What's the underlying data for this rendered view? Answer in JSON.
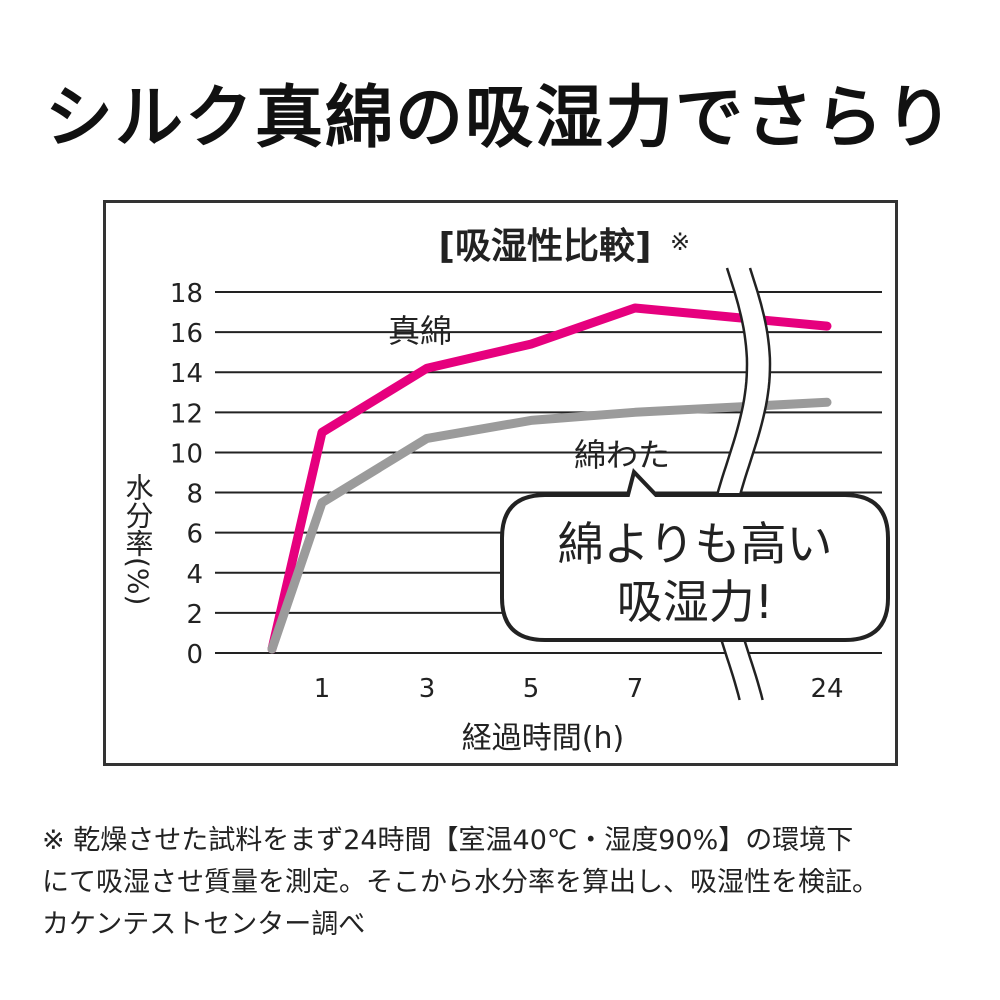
{
  "headline": "シルク真綿の吸湿力でさらり",
  "chart_data": {
    "type": "line",
    "title": "[吸湿性比較]",
    "title_mark": "※",
    "xlabel": "経過時間(h)",
    "ylabel": "水分率(%)",
    "ylim": [
      0,
      18
    ],
    "y_ticks": [
      0,
      2,
      4,
      6,
      8,
      10,
      12,
      14,
      16,
      18
    ],
    "x_ticks": [
      "1",
      "3",
      "5",
      "7",
      "24"
    ],
    "grid": true,
    "axis_break": "between 7 and 24",
    "series": [
      {
        "name": "真綿",
        "color": "#e6007e",
        "points": [
          {
            "x": "0",
            "y": 0.2
          },
          {
            "x": "1",
            "y": 11.0
          },
          {
            "x": "3",
            "y": 14.2
          },
          {
            "x": "5",
            "y": 15.4
          },
          {
            "x": "7",
            "y": 17.2
          },
          {
            "x": "24",
            "y": 16.3
          }
        ]
      },
      {
        "name": "綿わた",
        "color": "#9b9b9b",
        "points": [
          {
            "x": "0",
            "y": 0.2
          },
          {
            "x": "1",
            "y": 7.5
          },
          {
            "x": "3",
            "y": 10.7
          },
          {
            "x": "5",
            "y": 11.6
          },
          {
            "x": "7",
            "y": 12.0
          },
          {
            "x": "24",
            "y": 12.5
          }
        ]
      }
    ],
    "callout": {
      "line1": "綿よりも高い",
      "line2": "吸湿力!"
    }
  },
  "footnote": {
    "line1": "※ 乾燥させた試料をまず24時間【室温40℃・湿度90%】の環境下",
    "line2": "にて吸湿させ質量を測定。そこから水分率を算出し、吸湿性を検証。",
    "line3": "カケンテストセンター調べ"
  }
}
